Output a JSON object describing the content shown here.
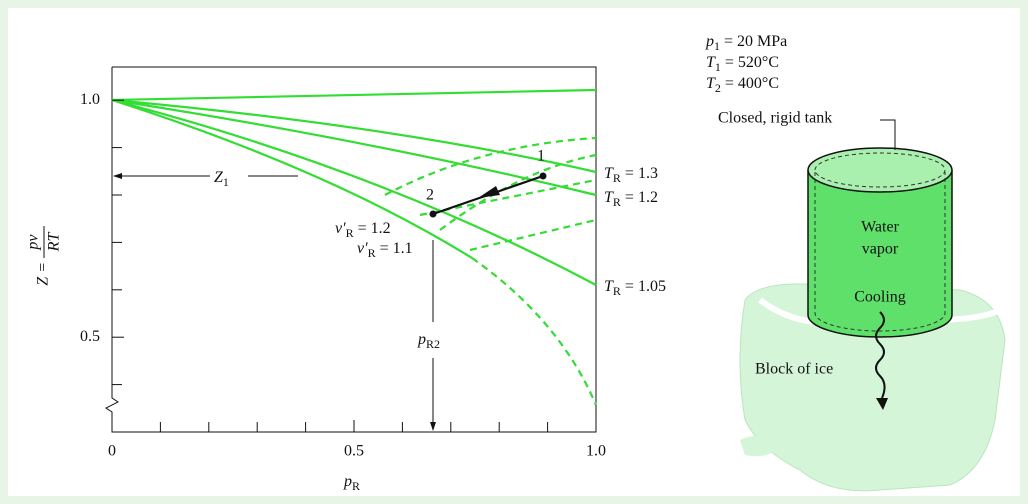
{
  "chart": {
    "xlim": [
      0,
      1
    ],
    "ylim": [
      0.3,
      1.07
    ],
    "xticks": [
      0,
      0.5,
      {
        "value": 1,
        "label": "1.0"
      }
    ],
    "yticks": [
      0.5,
      {
        "value": 1,
        "label": "1.0"
      }
    ],
    "x_minor_ticks": [
      0.1,
      0.2,
      0.3,
      0.4,
      0.6,
      0.7,
      0.8,
      0.9
    ],
    "y_minor_ticks": [
      0.4,
      0.6,
      0.7,
      0.8,
      0.9
    ],
    "x_label": {
      "main": "p",
      "sub": "R"
    },
    "y_label": {
      "lhs": "Z =",
      "num": "pv",
      "den": "RT"
    },
    "curve_labels": [
      {
        "main": "T",
        "sub": "R",
        "rest": "= 1.3"
      },
      {
        "main": "T",
        "sub": "R",
        "rest": "= 1.2"
      },
      {
        "main": "T",
        "sub": "R",
        "rest": "= 1.05"
      }
    ],
    "volume_labels": [
      {
        "main": "v′",
        "sub": "R",
        "rest": "= 1.2"
      },
      {
        "main": "v′",
        "sub": "R",
        "rest": "= 1.1"
      }
    ],
    "state_labels": [
      "1",
      "2"
    ],
    "z1_label": {
      "main": "Z",
      "sub": "1"
    },
    "pr2_label": {
      "main": "p",
      "sub": "R2"
    }
  },
  "tank": {
    "conditions": [
      {
        "main": "p",
        "sub": "1",
        "rest": "= 20 MPa"
      },
      {
        "main": "T",
        "sub": "1",
        "rest": "= 520°C"
      },
      {
        "main": "T",
        "sub": "2",
        "rest": "= 400°C"
      }
    ],
    "tank_label": "Closed, rigid tank",
    "contents": [
      "Water",
      "vapor"
    ],
    "process": "Cooling",
    "ice": "Block of ice"
  }
}
